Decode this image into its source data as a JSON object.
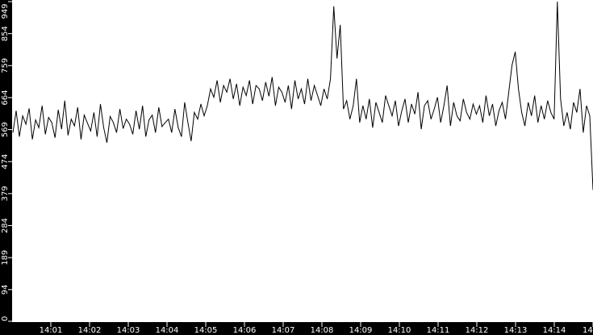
{
  "chart_data": {
    "type": "line",
    "title": "",
    "xlabel": "",
    "ylabel": "",
    "ylim": [
      0,
      949
    ],
    "yticks": [
      "0",
      "94",
      "189",
      "284",
      "379",
      "474",
      "569",
      "664",
      "759",
      "854",
      "949"
    ],
    "xticks": [
      "14:01",
      "14:02",
      "14:03",
      "14:04",
      "14:05",
      "14:06",
      "14:07",
      "14:08",
      "14:09",
      "14:10",
      "14:11",
      "14:12",
      "14:13",
      "14:14",
      "14"
    ],
    "xlim": [
      "14:00:00",
      "14:15:00"
    ],
    "x_start": "14:00:00",
    "x_interval_seconds": 5,
    "grid": false,
    "colors": {
      "background": "#000000",
      "plot": "#ffffff",
      "line": "#000000",
      "axis_text": "#ffffff"
    },
    "values": [
      560,
      625,
      548,
      610,
      585,
      632,
      540,
      598,
      575,
      640,
      555,
      605,
      590,
      545,
      628,
      570,
      655,
      552,
      600,
      580,
      635,
      540,
      612,
      588,
      565,
      620,
      548,
      645,
      575,
      530,
      608,
      590,
      560,
      630,
      572,
      600,
      585,
      555,
      625,
      570,
      640,
      548,
      598,
      612,
      560,
      635,
      578,
      590,
      600,
      560,
      630,
      575,
      548,
      650,
      590,
      535,
      620,
      600,
      645,
      610,
      640,
      690,
      665,
      715,
      650,
      700,
      680,
      720,
      660,
      705,
      640,
      695,
      670,
      715,
      645,
      700,
      690,
      655,
      710,
      668,
      725,
      640,
      695,
      680,
      650,
      700,
      630,
      715,
      660,
      690,
      645,
      720,
      655,
      700,
      670,
      640,
      690,
      660,
      720,
      935,
      780,
      880,
      630,
      655,
      600,
      640,
      720,
      590,
      640,
      600,
      660,
      575,
      650,
      620,
      590,
      670,
      640,
      610,
      655,
      580,
      625,
      660,
      590,
      645,
      615,
      680,
      570,
      640,
      655,
      600,
      630,
      665,
      590,
      640,
      700,
      580,
      650,
      610,
      595,
      660,
      620,
      600,
      645,
      615,
      640,
      590,
      670,
      610,
      645,
      580,
      625,
      650,
      600,
      680,
      760,
      800,
      690,
      620,
      580,
      650,
      610,
      670,
      590,
      640,
      600,
      655,
      620,
      600,
      949,
      660,
      580,
      620,
      570,
      650,
      620,
      690,
      560,
      640,
      610,
      390
    ]
  }
}
